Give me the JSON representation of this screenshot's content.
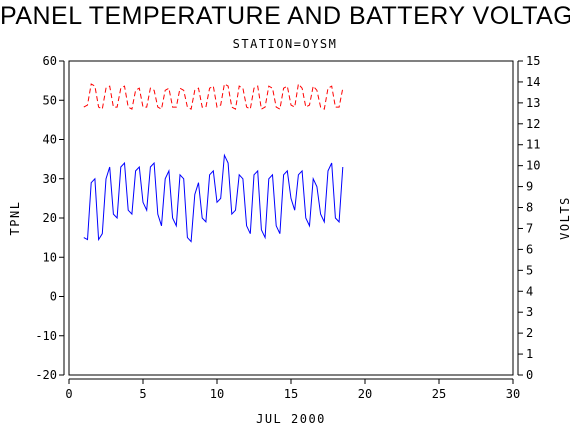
{
  "chart_data": {
    "type": "line",
    "title": "PANEL TEMPERATURE AND BATTERY VOLTAGE",
    "subtitle": "STATION=OYSM",
    "xlabel": "JUL 2000",
    "ylabel_left": "TPNL",
    "ylabel_right": "VOLTS",
    "xlim": [
      0,
      30
    ],
    "ylim_left": [
      -20,
      60
    ],
    "ylim_right": [
      0,
      15
    ],
    "x_ticks": [
      "0",
      "5",
      "10",
      "15",
      "20",
      "25",
      "30"
    ],
    "y_left_ticks": [
      "-20",
      "-10",
      "0",
      "10",
      "20",
      "30",
      "40",
      "50",
      "60"
    ],
    "y_right_ticks": [
      "0",
      "1",
      "2",
      "3",
      "4",
      "5",
      "6",
      "7",
      "8",
      "9",
      "10",
      "11",
      "12",
      "13",
      "14",
      "15"
    ],
    "grid": false,
    "series": [
      {
        "axis": "left",
        "color": "#0000ff",
        "style": "solid",
        "x": [
          1.0,
          1.25,
          1.5,
          1.75,
          2.0,
          2.25,
          2.5,
          2.75,
          3.0,
          3.25,
          3.5,
          3.75,
          4.0,
          4.25,
          4.5,
          4.75,
          5.0,
          5.25,
          5.5,
          5.75,
          6.0,
          6.25,
          6.5,
          6.75,
          7.0,
          7.25,
          7.5,
          7.75,
          8.0,
          8.25,
          8.5,
          8.75,
          9.0,
          9.25,
          9.5,
          9.75,
          10.0,
          10.25,
          10.5,
          10.75,
          11.0,
          11.25,
          11.5,
          11.75,
          12.0,
          12.25,
          12.5,
          12.75,
          13.0,
          13.25,
          13.5,
          13.75,
          14.0,
          14.25,
          14.5,
          14.75,
          15.0,
          15.25,
          15.5,
          15.75,
          16.0,
          16.25,
          16.5,
          16.75,
          17.0,
          17.25,
          17.5,
          17.75,
          18.0,
          18.25,
          18.5
        ],
        "y": [
          15,
          14.5,
          29,
          30,
          14.5,
          16,
          30,
          33,
          21,
          20,
          33,
          34,
          22,
          21,
          32,
          33,
          24,
          22,
          33,
          34,
          21,
          18,
          30,
          32,
          20,
          18,
          31,
          30,
          15,
          14,
          26,
          29,
          20,
          19,
          31,
          32,
          24,
          25,
          36,
          34,
          21,
          22,
          31,
          30,
          18,
          16,
          31,
          32,
          17,
          15,
          30,
          31,
          18,
          16,
          31,
          32,
          25,
          22,
          31,
          32,
          20,
          18,
          30,
          28,
          21,
          19,
          32,
          34,
          20,
          19,
          33
        ]
      },
      {
        "axis": "right",
        "color": "#ff0000",
        "style": "dashed",
        "x": [
          1.0,
          1.25,
          1.5,
          1.75,
          2.0,
          2.25,
          2.5,
          2.75,
          3.0,
          3.25,
          3.5,
          3.75,
          4.0,
          4.25,
          4.5,
          4.75,
          5.0,
          5.25,
          5.5,
          5.75,
          6.0,
          6.25,
          6.5,
          6.75,
          7.0,
          7.25,
          7.5,
          7.75,
          8.0,
          8.25,
          8.5,
          8.75,
          9.0,
          9.25,
          9.5,
          9.75,
          10.0,
          10.25,
          10.5,
          10.75,
          11.0,
          11.25,
          11.5,
          11.75,
          12.0,
          12.25,
          12.5,
          12.75,
          13.0,
          13.25,
          13.5,
          13.75,
          14.0,
          14.25,
          14.5,
          14.75,
          15.0,
          15.25,
          15.5,
          15.75,
          16.0,
          16.25,
          16.5,
          16.75,
          17.0,
          17.25,
          17.5,
          17.75,
          18.0,
          18.25,
          18.5
        ],
        "y": [
          12.8,
          12.9,
          13.9,
          13.8,
          12.8,
          12.7,
          13.7,
          13.8,
          12.8,
          12.8,
          13.7,
          13.8,
          12.8,
          12.7,
          13.6,
          13.7,
          12.8,
          12.8,
          13.7,
          13.6,
          12.8,
          12.7,
          13.6,
          13.7,
          12.8,
          12.8,
          13.7,
          13.6,
          12.8,
          12.7,
          13.6,
          13.7,
          12.8,
          12.8,
          13.7,
          13.8,
          12.8,
          12.9,
          13.9,
          13.8,
          12.8,
          12.7,
          13.8,
          13.7,
          12.8,
          12.7,
          13.7,
          13.8,
          12.7,
          12.8,
          13.8,
          13.7,
          12.8,
          12.7,
          13.7,
          13.8,
          12.9,
          12.8,
          13.9,
          13.7,
          12.8,
          12.9,
          13.8,
          13.6,
          12.8,
          12.7,
          13.7,
          13.8,
          12.8,
          12.8,
          13.7
        ]
      }
    ]
  }
}
